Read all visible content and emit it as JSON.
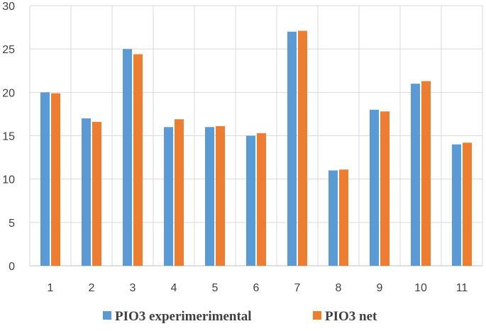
{
  "chart_data": {
    "type": "bar",
    "title": "",
    "xlabel": "",
    "ylabel": "",
    "categories": [
      "1",
      "2",
      "3",
      "4",
      "5",
      "6",
      "7",
      "8",
      "9",
      "10",
      "11"
    ],
    "ylim": [
      0,
      30
    ],
    "yticks": [
      0,
      5,
      10,
      15,
      20,
      25,
      30
    ],
    "grid": true,
    "legend_position": "bottom",
    "series": [
      {
        "name": "PIO3 experimerimental",
        "color": "#5b9bd5",
        "values": [
          20,
          17,
          25,
          16,
          16,
          15,
          27,
          11,
          18,
          21,
          14
        ]
      },
      {
        "name": "PIO3 net",
        "color": "#ed7d31",
        "values": [
          19.9,
          16.6,
          24.4,
          16.9,
          16.1,
          15.3,
          27.1,
          11.1,
          17.8,
          21.3,
          14.2
        ]
      }
    ]
  }
}
